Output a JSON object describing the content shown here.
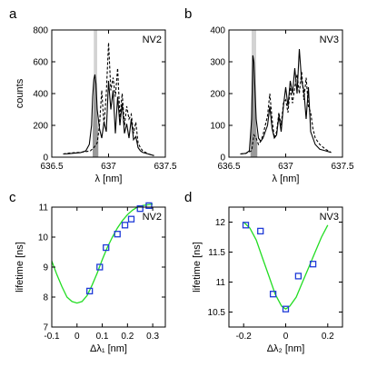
{
  "figure": {
    "panel_letters": [
      "a",
      "b",
      "c",
      "d"
    ]
  },
  "chart_data": [
    {
      "panel": "a",
      "type": "line",
      "label": "NV2",
      "xlabel": "λ [nm]",
      "ylabel": "counts",
      "xlim": [
        636.5,
        637.5
      ],
      "ylim": [
        0,
        800
      ],
      "xticks": [
        "636.5",
        "637",
        "637.5"
      ],
      "yticks": [
        "0",
        "200",
        "400",
        "600",
        "800"
      ],
      "xtick_values": [
        636.5,
        637.0,
        637.5
      ],
      "ytick_values": [
        0,
        200,
        400,
        600,
        800
      ],
      "shaded_band": [
        636.87,
        636.9
      ],
      "band_color": "#d3d3d3",
      "filled_peak": {
        "x": [
          636.86,
          636.87,
          636.875,
          636.88,
          636.885,
          636.89,
          636.9,
          636.91
        ],
        "y": [
          150,
          380,
          480,
          520,
          490,
          400,
          250,
          140
        ]
      },
      "series": [
        {
          "style": "solid",
          "x": [
            636.6,
            636.65,
            636.7,
            636.75,
            636.8,
            636.83,
            636.85,
            636.86,
            636.87,
            636.88,
            636.89,
            636.9,
            636.92,
            636.94,
            636.96,
            636.98,
            637.0,
            637.02,
            637.04,
            637.06,
            637.08,
            637.1,
            637.12,
            637.14,
            637.16,
            637.18,
            637.2,
            637.22,
            637.24,
            637.26,
            637.28,
            637.3,
            637.35,
            637.4
          ],
          "y": [
            20,
            22,
            25,
            28,
            40,
            80,
            200,
            380,
            490,
            520,
            460,
            300,
            180,
            120,
            220,
            160,
            480,
            300,
            420,
            150,
            380,
            200,
            340,
            150,
            210,
            120,
            240,
            110,
            130,
            60,
            40,
            30,
            20,
            10
          ]
        },
        {
          "style": "dashed",
          "x": [
            636.6,
            636.65,
            636.7,
            636.75,
            636.8,
            636.84,
            636.87,
            636.9,
            636.92,
            636.94,
            636.96,
            636.98,
            637.0,
            637.02,
            637.04,
            637.06,
            637.08,
            637.1,
            637.12,
            637.14,
            637.16,
            637.18,
            637.2,
            637.22,
            637.24,
            637.26,
            637.28,
            637.3,
            637.35,
            637.4
          ],
          "y": [
            20,
            25,
            28,
            30,
            35,
            40,
            60,
            90,
            200,
            420,
            200,
            400,
            720,
            420,
            500,
            380,
            560,
            250,
            400,
            200,
            320,
            240,
            270,
            150,
            220,
            90,
            60,
            40,
            20,
            10
          ]
        }
      ]
    },
    {
      "panel": "b",
      "type": "line",
      "label": "NV3",
      "xlabel": "λ [nm]",
      "ylabel": "",
      "xlim": [
        636.5,
        637.5
      ],
      "ylim": [
        0,
        400
      ],
      "xticks": [
        "636.5",
        "637",
        "637.5"
      ],
      "yticks": [
        "0",
        "100",
        "200",
        "300",
        "400"
      ],
      "xtick_values": [
        636.5,
        637.0,
        637.5
      ],
      "ytick_values": [
        0,
        100,
        200,
        300,
        400
      ],
      "shaded_band": [
        636.7,
        636.74
      ],
      "band_color": "#d3d3d3",
      "filled_peak": {
        "x": [
          636.69,
          636.7,
          636.71,
          636.72,
          636.73,
          636.74,
          636.75
        ],
        "y": [
          60,
          200,
          320,
          300,
          180,
          90,
          40
        ]
      },
      "series": [
        {
          "style": "solid",
          "x": [
            636.6,
            636.65,
            636.68,
            636.7,
            636.71,
            636.72,
            636.74,
            636.76,
            636.78,
            636.8,
            636.82,
            636.84,
            636.86,
            636.88,
            636.9,
            636.92,
            636.94,
            636.96,
            636.98,
            637.0,
            637.02,
            637.04,
            637.06,
            637.08,
            637.1,
            637.12,
            637.14,
            637.16,
            637.18,
            637.2,
            637.22,
            637.24,
            637.26,
            637.3,
            637.35,
            637.4
          ],
          "y": [
            10,
            12,
            20,
            120,
            320,
            300,
            120,
            60,
            50,
            60,
            80,
            100,
            160,
            90,
            60,
            70,
            130,
            80,
            160,
            220,
            160,
            240,
            200,
            280,
            200,
            340,
            240,
            210,
            120,
            220,
            80,
            60,
            40,
            25,
            20,
            15
          ]
        },
        {
          "style": "dashed",
          "x": [
            636.6,
            636.65,
            636.7,
            636.72,
            636.74,
            636.76,
            636.78,
            636.8,
            636.82,
            636.84,
            636.86,
            636.88,
            636.9,
            636.92,
            636.94,
            636.96,
            636.98,
            637.0,
            637.02,
            637.04,
            637.06,
            637.08,
            637.1,
            637.12,
            637.14,
            637.16,
            637.18,
            637.2,
            637.22,
            637.24,
            637.26,
            637.3,
            637.35,
            637.4
          ],
          "y": [
            10,
            12,
            20,
            70,
            60,
            40,
            50,
            70,
            100,
            130,
            200,
            120,
            60,
            80,
            140,
            100,
            170,
            180,
            140,
            220,
            170,
            220,
            260,
            200,
            270,
            180,
            250,
            160,
            140,
            90,
            60,
            40,
            25,
            15
          ]
        }
      ]
    },
    {
      "panel": "c",
      "type": "scatter",
      "label": "NV2",
      "xlabel": "Δλ₁ [nm]",
      "ylabel": "lifetime [ns]",
      "xlim": [
        -0.1,
        0.35
      ],
      "ylim": [
        7,
        11
      ],
      "xticks": [
        "-0.1",
        "0",
        "0.1",
        "0.2",
        "0.3"
      ],
      "yticks": [
        "7",
        "8",
        "9",
        "10",
        "11"
      ],
      "xtick_values": [
        -0.1,
        0.0,
        0.1,
        0.2,
        0.3
      ],
      "ytick_values": [
        7,
        8,
        9,
        10,
        11
      ],
      "marker_color": "#1f3bd8",
      "fit_color": "#22dd22",
      "points": {
        "x": [
          0.05,
          0.09,
          0.115,
          0.16,
          0.19,
          0.215,
          0.25,
          0.285
        ],
        "y": [
          8.2,
          9.0,
          9.65,
          10.1,
          10.4,
          10.6,
          10.95,
          11.05
        ]
      },
      "fit": {
        "x": [
          -0.1,
          -0.08,
          -0.06,
          -0.04,
          -0.02,
          0.0,
          0.02,
          0.04,
          0.06,
          0.08,
          0.1,
          0.12,
          0.14,
          0.16,
          0.18,
          0.2,
          0.22,
          0.24,
          0.26,
          0.28,
          0.3
        ],
        "y": [
          9.2,
          8.75,
          8.35,
          8.0,
          7.85,
          7.8,
          7.85,
          8.05,
          8.4,
          8.8,
          9.25,
          9.65,
          10.0,
          10.3,
          10.55,
          10.75,
          10.9,
          11.0,
          11.05,
          11.08,
          11.1
        ]
      }
    },
    {
      "panel": "d",
      "type": "scatter",
      "label": "NV3",
      "xlabel": "Δλ₂ [nm]",
      "ylabel": "lifetime [ns]",
      "xlim": [
        -0.27,
        0.27
      ],
      "ylim": [
        10.25,
        12.25
      ],
      "xticks": [
        "-0.2",
        "0",
        "0.2"
      ],
      "yticks": [
        "10.5",
        "11",
        "11.5",
        "12"
      ],
      "xtick_values": [
        -0.2,
        0.0,
        0.2
      ],
      "ytick_values": [
        10.5,
        11.0,
        11.5,
        12.0
      ],
      "marker_color": "#1f3bd8",
      "fit_color": "#22dd22",
      "points": {
        "x": [
          -0.19,
          -0.12,
          -0.06,
          0.0,
          0.06,
          0.13
        ],
        "y": [
          11.95,
          11.85,
          10.8,
          10.55,
          11.1,
          11.3
        ]
      },
      "fit": {
        "x": [
          -0.2,
          -0.17,
          -0.14,
          -0.11,
          -0.08,
          -0.05,
          -0.02,
          0.0,
          0.02,
          0.05,
          0.08,
          0.11,
          0.14,
          0.17,
          0.2
        ],
        "y": [
          12.0,
          11.9,
          11.7,
          11.4,
          11.1,
          10.8,
          10.6,
          10.55,
          10.6,
          10.75,
          11.0,
          11.25,
          11.5,
          11.75,
          11.95
        ]
      }
    }
  ]
}
